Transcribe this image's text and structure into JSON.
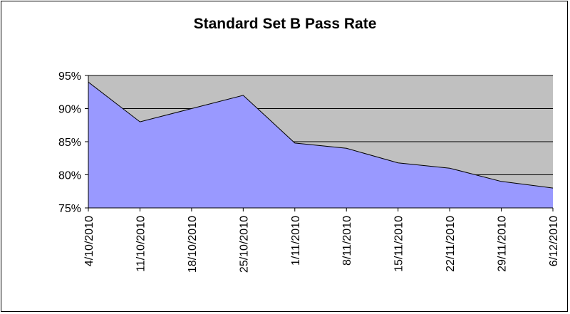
{
  "chart_data": {
    "type": "area",
    "title": "Standard Set B Pass Rate",
    "xlabel": "",
    "ylabel": "",
    "categories": [
      "4/10/2010",
      "11/10/2010",
      "18/10/2010",
      "25/10/2010",
      "1/11/2010",
      "8/11/2010",
      "15/11/2010",
      "22/11/2010",
      "29/11/2010",
      "6/12/2010"
    ],
    "values": [
      94,
      88,
      90,
      92,
      84.8,
      84,
      81.8,
      81,
      79,
      78
    ],
    "ylim": [
      75,
      95
    ],
    "yticks": [
      75,
      80,
      85,
      90,
      95
    ],
    "ytick_labels": [
      "75%",
      "80%",
      "85%",
      "90%",
      "95%"
    ],
    "grid": true,
    "legend": "none",
    "colors": {
      "plot_background": "#c0c0c0",
      "area_fill": "#9999ff",
      "area_line": "#000000",
      "gridline": "#000000"
    }
  }
}
